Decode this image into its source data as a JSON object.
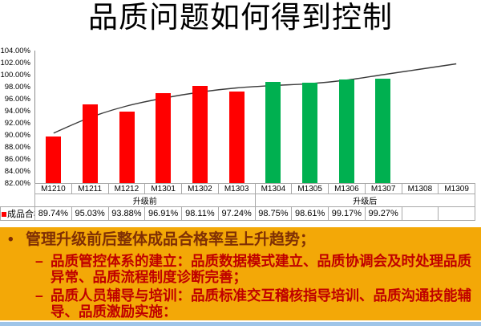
{
  "slide": {
    "title": "品质问题如何得到控制"
  },
  "chart_data": {
    "type": "bar",
    "title": "",
    "categories": [
      "M1210",
      "M1211",
      "M1212",
      "M1301",
      "M1302",
      "M1303",
      "M1304",
      "M1305",
      "M1306",
      "M1307",
      "M1308",
      "M1309"
    ],
    "series": [
      {
        "name": "成品合格率",
        "type": "bar",
        "values": [
          89.74,
          95.03,
          93.88,
          96.91,
          98.11,
          97.24,
          98.75,
          98.61,
          99.17,
          99.27,
          null,
          null
        ],
        "bar_colors": [
          "#FF0000",
          "#FF0000",
          "#FF0000",
          "#FF0000",
          "#FF0000",
          "#FF0000",
          "#00B050",
          "#00B050",
          "#00B050",
          "#00B050",
          null,
          null
        ]
      },
      {
        "name": "趋势线",
        "type": "line",
        "color": "#3a3a3a",
        "values": [
          90.3,
          92.9,
          94.8,
          96.1,
          97.1,
          97.8,
          98.2,
          98.5,
          99.1,
          100.0,
          100.9,
          101.8
        ]
      }
    ],
    "ylim": [
      82,
      104
    ],
    "ytick_step": 2,
    "ytick_labels": [
      "104.00%",
      "102.00%",
      "100.00%",
      "98.00%",
      "96.00%",
      "94.00%",
      "92.00%",
      "90.00%",
      "88.00%",
      "86.00%",
      "84.00%",
      "82.00%"
    ],
    "grid": false,
    "legend_label": "成品合格率",
    "legend_color": "#FF0000",
    "phases": [
      {
        "label": "升级前",
        "span": 6
      },
      {
        "label": "升级后",
        "span": 6
      }
    ],
    "value_row": [
      "89.74%",
      "95.03%",
      "93.88%",
      "96.91%",
      "98.11%",
      "97.24%",
      "98.75%",
      "98.61%",
      "99.17%",
      "99.27%",
      "",
      ""
    ]
  },
  "notes": {
    "background": "#F3A807",
    "bullets": [
      {
        "level": 1,
        "marker": "•",
        "color": "#7F2F05",
        "text": "管理升级前后整体成品合格率呈上升趋势；"
      },
      {
        "level": 2,
        "marker": "–",
        "color": "#C00000",
        "text": "品质管控体系的建立：品质数据模式建立、品质协调会及时处理品质异常、品质流程制度诊断完善；"
      },
      {
        "level": 2,
        "marker": "–",
        "color": "#C00000",
        "text": "品质人员辅导与培训：品质标准交互稽核指导培训、品质沟通技能辅导、品质激励实施："
      }
    ]
  },
  "decor": {
    "bottom_strip_color": "#9FC5E8"
  }
}
